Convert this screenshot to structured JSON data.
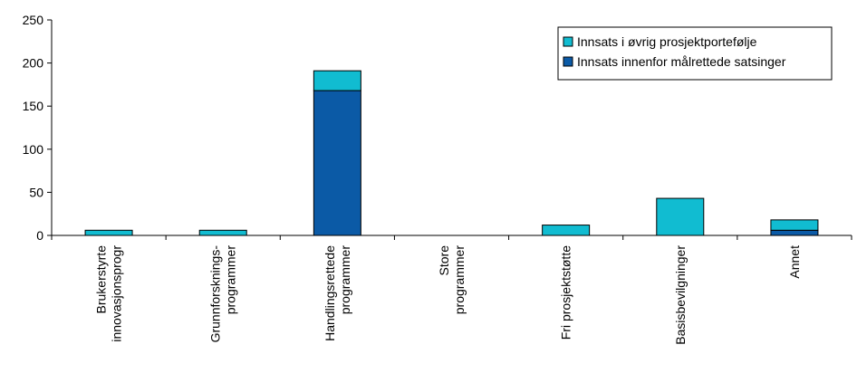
{
  "chart_data": {
    "type": "bar",
    "stacked": true,
    "categories": [
      [
        "Brukerstyrte",
        "innovasjonsprogr"
      ],
      [
        "Grunnforsknings-",
        "programmer"
      ],
      [
        "Handlingsrettede",
        "programmer"
      ],
      [
        "Store",
        "programmer"
      ],
      [
        "Fri prosjektstøtte"
      ],
      [
        "Basisbevilgninger"
      ],
      [
        "Annet"
      ]
    ],
    "series": [
      {
        "name": "Innsats innenfor målrettede satsinger",
        "color": "#0b5aa6",
        "values": [
          0,
          0,
          168,
          0,
          0,
          0,
          6
        ]
      },
      {
        "name": "Innsats i øvrig prosjektportefølje",
        "color": "#11bcd1",
        "values": [
          6,
          6,
          23,
          0,
          12,
          43,
          12
        ]
      }
    ],
    "yticks": [
      "0",
      "50",
      "100",
      "150",
      "200",
      "250"
    ],
    "ylim": [
      0,
      250
    ],
    "grid": false,
    "legend_position": "top-right",
    "legend_order": [
      "Innsats i øvrig prosjektportefølje",
      "Innsats innenfor målrettede satsinger"
    ]
  }
}
